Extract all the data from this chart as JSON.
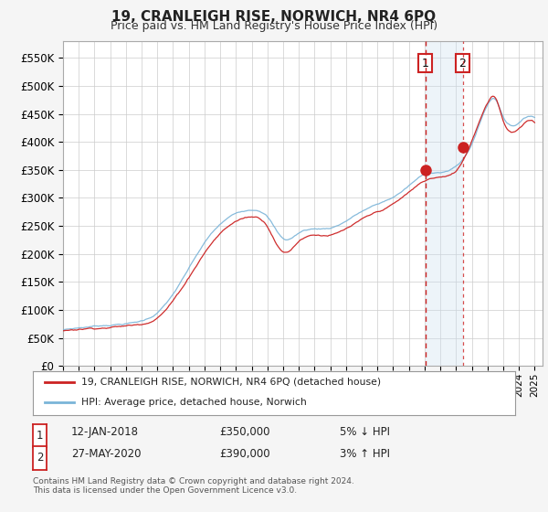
{
  "title": "19, CRANLEIGH RISE, NORWICH, NR4 6PQ",
  "subtitle": "Price paid vs. HM Land Registry's House Price Index (HPI)",
  "ylabel_ticks": [
    "£0",
    "£50K",
    "£100K",
    "£150K",
    "£200K",
    "£250K",
    "£300K",
    "£350K",
    "£400K",
    "£450K",
    "£500K",
    "£550K"
  ],
  "ytick_values": [
    0,
    50000,
    100000,
    150000,
    200000,
    250000,
    300000,
    350000,
    400000,
    450000,
    500000,
    550000
  ],
  "ylim": [
    0,
    580000
  ],
  "xlim_start": 1995.0,
  "xlim_end": 2025.5,
  "hpi_color": "#7ab4d8",
  "price_color": "#cc2222",
  "sale1_date": 2018.04,
  "sale1_price": 350000,
  "sale2_date": 2020.42,
  "sale2_price": 390000,
  "legend_label1": "19, CRANLEIGH RISE, NORWICH, NR4 6PQ (detached house)",
  "legend_label2": "HPI: Average price, detached house, Norwich",
  "table_row1": [
    "1",
    "12-JAN-2018",
    "£350,000",
    "5% ↓ HPI"
  ],
  "table_row2": [
    "2",
    "27-MAY-2020",
    "£390,000",
    "3% ↑ HPI"
  ],
  "footnote": "Contains HM Land Registry data © Crown copyright and database right 2024.\nThis data is licensed under the Open Government Licence v3.0.",
  "bg_color": "#f5f5f5",
  "plot_bg": "#ffffff",
  "grid_color": "#cccccc",
  "shade_color": "#cce0f0"
}
